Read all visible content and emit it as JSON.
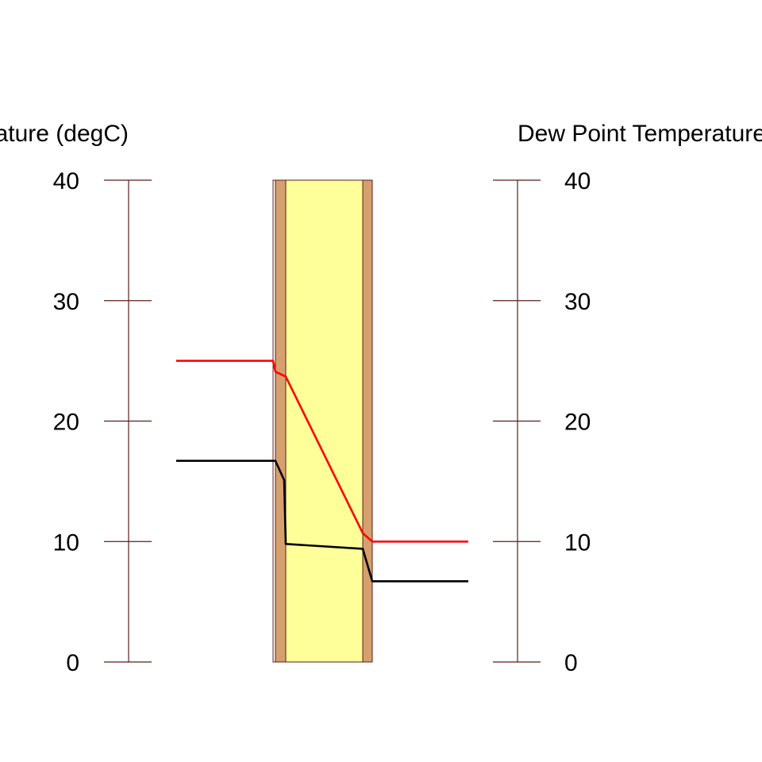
{
  "chart_data": {
    "type": "line",
    "left_axis_label": "Temperature (degC)",
    "right_axis_label": "Dew Point Temperature (degC)",
    "ylim": [
      0,
      40
    ],
    "yticks": [
      0,
      10,
      20,
      30,
      40
    ],
    "tick_labels": [
      "0",
      "10",
      "20",
      "30",
      "40"
    ],
    "grid": false,
    "layers": [
      {
        "color": "#fffffc",
        "outline": "#5a1e1e"
      },
      {
        "color": "#d6a06e",
        "outline": "#5a1e1e"
      },
      {
        "color": "#ffff99",
        "outline": "#5a1e1e"
      },
      {
        "color": "#d6a06e",
        "outline": "#5a1e1e"
      }
    ],
    "series": [
      {
        "color": "#ff0000",
        "values": [
          25.0,
          25.0,
          24.1,
          23.7,
          10.7,
          10.0,
          10.0
        ]
      },
      {
        "color": "#000000",
        "values": [
          16.7,
          16.7,
          16.7,
          15.1,
          9.8,
          9.4,
          6.7,
          6.7
        ]
      }
    ]
  },
  "colors": {
    "axis": "#5a1e1e",
    "temperature_line": "#ff0000",
    "dewpoint_line": "#000000"
  }
}
